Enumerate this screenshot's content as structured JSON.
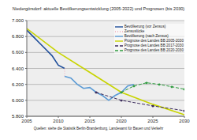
{
  "chart_data": {
    "type": "line",
    "title": "Niedergörsdorf: aktuelle Bevölkerungsentwicklung (2005-2022) und Prognosen (bis 2030)",
    "source": "Quellen: siehe die Statistik Berlin-Brandenburg, Landesamt für Bauen und Verkehr",
    "xlim": [
      2005,
      2030
    ],
    "xticks": [
      2005,
      2010,
      2015,
      2020,
      2025,
      2030
    ],
    "ylim": [
      5800,
      7000
    ],
    "yticks": [
      {
        "value": 5800,
        "label": "5.800"
      },
      {
        "value": 6000,
        "label": "6.000"
      },
      {
        "value": 6200,
        "label": "6.200"
      },
      {
        "value": 6400,
        "label": "6.400"
      },
      {
        "value": 6600,
        "label": "6.600"
      },
      {
        "value": 6800,
        "label": "6.800"
      },
      {
        "value": 7000,
        "label": "7.000"
      }
    ],
    "grid": true,
    "legend": "upper right",
    "series": [
      {
        "name": "Bevölkerung (vor Zensus)",
        "color": "#1f4e9a",
        "line_style": "solid",
        "marker": "none",
        "x": [
          2005,
          2006,
          2007,
          2008,
          2009,
          2010,
          2011
        ],
        "values": [
          6880,
          6800,
          6720,
          6640,
          6560,
          6440,
          6400
        ]
      },
      {
        "name": "Zensuslücke",
        "color": "#f0a8b8",
        "line_style": "dotted",
        "marker": "none",
        "x": [
          2011,
          2011
        ],
        "values": [
          6400,
          6300
        ]
      },
      {
        "name": "Bevölkerung (nach Zensus)",
        "color": "#5b9bd5",
        "line_style": "solid",
        "marker": "none",
        "x": [
          2011,
          2012,
          2013,
          2014,
          2015,
          2016,
          2017,
          2018,
          2019,
          2020,
          2021,
          2022
        ],
        "values": [
          6300,
          6280,
          6200,
          6150,
          6160,
          6100,
          6060,
          6000,
          6060,
          6100,
          6180,
          6200
        ]
      },
      {
        "name": "Prognose des Landes BB 2005-2030",
        "color": "#c8d400",
        "line_style": "solid",
        "marker": "none",
        "x": [
          2005,
          2010,
          2015,
          2020,
          2025,
          2030
        ],
        "values": [
          6900,
          6600,
          6350,
          6100,
          5950,
          5820
        ]
      },
      {
        "name": "Prognose des Landes BB 2017-2030",
        "color": "#3b2b5c",
        "line_style": "dashed",
        "marker": "circle",
        "x": [
          2016,
          2020,
          2025,
          2030
        ],
        "values": [
          6100,
          6000,
          5930,
          5870
        ]
      },
      {
        "name": "Prognose des Landes BB 2020-2030",
        "color": "#2e9b3e",
        "line_style": "dashed",
        "marker": "circle",
        "x": [
          2020,
          2022,
          2024,
          2026,
          2028,
          2030
        ],
        "values": [
          6100,
          6180,
          6220,
          6200,
          6170,
          6140
        ]
      }
    ]
  }
}
